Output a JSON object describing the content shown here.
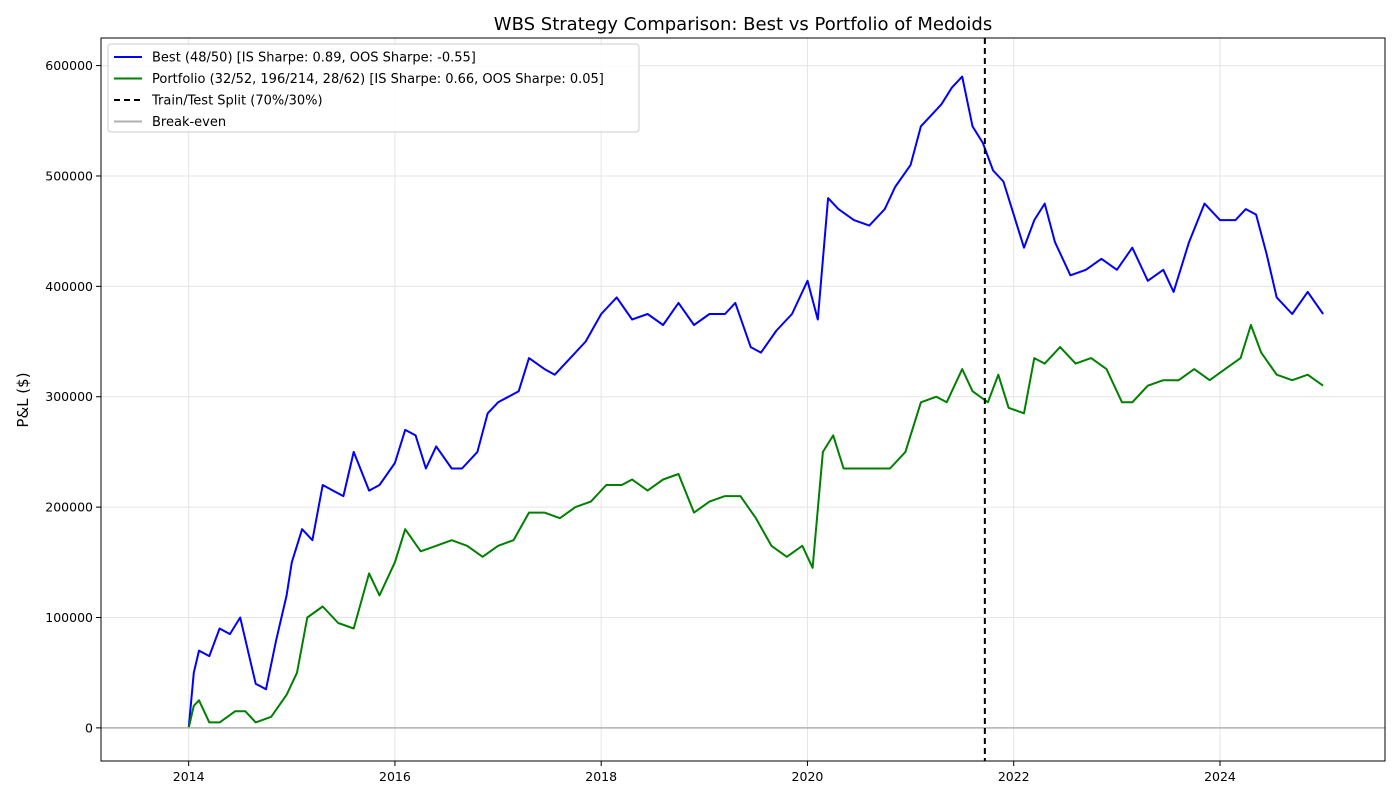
{
  "chart_data": {
    "type": "line",
    "title": "WBS Strategy Comparison: Best vs Portfolio of Medoids",
    "xlabel": "",
    "ylabel": "P&L ($)",
    "xlim": [
      2013.15,
      2025.6
    ],
    "ylim": [
      -30000,
      625000
    ],
    "x_ticks": [
      2014,
      2016,
      2018,
      2020,
      2022,
      2024
    ],
    "x_tick_labels": [
      "2014",
      "2016",
      "2018",
      "2020",
      "2022",
      "2024"
    ],
    "y_ticks": [
      0,
      100000,
      200000,
      300000,
      400000,
      500000,
      600000
    ],
    "y_tick_labels": [
      "0",
      "100000",
      "200000",
      "300000",
      "400000",
      "500000",
      "600000"
    ],
    "grid": true,
    "legend_position": "top-left",
    "split_x": 2021.72,
    "breakeven_y": 0,
    "legend": [
      {
        "label": "Best (48/50) [IS Sharpe: 0.89, OOS Sharpe: -0.55]",
        "color": "#0000ff",
        "style": "solid"
      },
      {
        "label": "Portfolio (32/52, 196/214, 28/62) [IS Sharpe: 0.66, OOS Sharpe: 0.05]",
        "color": "#008000",
        "style": "solid"
      },
      {
        "label": "Train/Test Split (70%/30%)",
        "color": "#000000",
        "style": "dashed"
      },
      {
        "label": "Break-even",
        "color": "#b0b0b0",
        "style": "solid"
      }
    ],
    "series": [
      {
        "name": "Best (48/50) [IS Sharpe: 0.89, OOS Sharpe: -0.55]",
        "color": "#0000ff",
        "x": [
          2014.0,
          2014.05,
          2014.1,
          2014.2,
          2014.3,
          2014.4,
          2014.5,
          2014.6,
          2014.65,
          2014.75,
          2014.85,
          2014.95,
          2015.0,
          2015.1,
          2015.2,
          2015.3,
          2015.4,
          2015.5,
          2015.6,
          2015.75,
          2015.85,
          2016.0,
          2016.1,
          2016.2,
          2016.3,
          2016.4,
          2016.55,
          2016.65,
          2016.8,
          2016.9,
          2017.0,
          2017.2,
          2017.3,
          2017.45,
          2017.55,
          2017.7,
          2017.85,
          2018.0,
          2018.15,
          2018.3,
          2018.45,
          2018.6,
          2018.75,
          2018.9,
          2019.05,
          2019.2,
          2019.3,
          2019.45,
          2019.55,
          2019.7,
          2019.85,
          2020.0,
          2020.1,
          2020.2,
          2020.3,
          2020.45,
          2020.6,
          2020.75,
          2020.85,
          2021.0,
          2021.1,
          2021.2,
          2021.3,
          2021.4,
          2021.5,
          2021.6,
          2021.7,
          2021.8,
          2021.9,
          2022.0,
          2022.1,
          2022.2,
          2022.3,
          2022.4,
          2022.55,
          2022.7,
          2022.85,
          2023.0,
          2023.15,
          2023.3,
          2023.45,
          2023.55,
          2023.7,
          2023.85,
          2024.0,
          2024.15,
          2024.25,
          2024.35,
          2024.45,
          2024.55,
          2024.7,
          2024.85,
          2025.0
        ],
        "y": [
          0,
          50000,
          70000,
          65000,
          90000,
          85000,
          100000,
          60000,
          40000,
          35000,
          80000,
          120000,
          150000,
          180000,
          170000,
          220000,
          215000,
          210000,
          250000,
          215000,
          220000,
          240000,
          270000,
          265000,
          235000,
          255000,
          235000,
          235000,
          250000,
          285000,
          295000,
          305000,
          335000,
          325000,
          320000,
          335000,
          350000,
          375000,
          390000,
          370000,
          375000,
          365000,
          385000,
          365000,
          375000,
          375000,
          385000,
          345000,
          340000,
          360000,
          375000,
          405000,
          370000,
          480000,
          470000,
          460000,
          455000,
          470000,
          490000,
          510000,
          545000,
          555000,
          565000,
          580000,
          590000,
          545000,
          530000,
          505000,
          495000,
          465000,
          435000,
          460000,
          475000,
          440000,
          410000,
          415000,
          425000,
          415000,
          435000,
          405000,
          415000,
          395000,
          440000,
          475000,
          460000,
          460000,
          470000,
          465000,
          430000,
          390000,
          375000,
          395000,
          375000
        ]
      },
      {
        "name": "Portfolio (32/52, 196/214, 28/62) [IS Sharpe: 0.66, OOS Sharpe: 0.05]",
        "color": "#008000",
        "x": [
          2014.0,
          2014.05,
          2014.1,
          2014.2,
          2014.3,
          2014.45,
          2014.55,
          2014.65,
          2014.8,
          2014.95,
          2015.05,
          2015.15,
          2015.3,
          2015.45,
          2015.6,
          2015.75,
          2015.85,
          2016.0,
          2016.1,
          2016.25,
          2016.4,
          2016.55,
          2016.7,
          2016.85,
          2017.0,
          2017.15,
          2017.3,
          2017.45,
          2017.6,
          2017.75,
          2017.9,
          2018.05,
          2018.2,
          2018.3,
          2018.45,
          2018.6,
          2018.75,
          2018.9,
          2019.05,
          2019.2,
          2019.35,
          2019.5,
          2019.65,
          2019.8,
          2019.95,
          2020.05,
          2020.15,
          2020.25,
          2020.35,
          2020.5,
          2020.65,
          2020.8,
          2020.95,
          2021.1,
          2021.25,
          2021.35,
          2021.5,
          2021.6,
          2021.75,
          2021.85,
          2021.95,
          2022.1,
          2022.2,
          2022.3,
          2022.45,
          2022.6,
          2022.75,
          2022.9,
          2023.05,
          2023.15,
          2023.3,
          2023.45,
          2023.6,
          2023.75,
          2023.9,
          2024.05,
          2024.2,
          2024.3,
          2024.4,
          2024.55,
          2024.7,
          2024.85,
          2025.0
        ],
        "y": [
          0,
          20000,
          25000,
          5000,
          5000,
          15000,
          15000,
          5000,
          10000,
          30000,
          50000,
          100000,
          110000,
          95000,
          90000,
          140000,
          120000,
          150000,
          180000,
          160000,
          165000,
          170000,
          165000,
          155000,
          165000,
          170000,
          195000,
          195000,
          190000,
          200000,
          205000,
          220000,
          220000,
          225000,
          215000,
          225000,
          230000,
          195000,
          205000,
          210000,
          210000,
          190000,
          165000,
          155000,
          165000,
          145000,
          250000,
          265000,
          235000,
          235000,
          235000,
          235000,
          250000,
          295000,
          300000,
          295000,
          325000,
          305000,
          295000,
          320000,
          290000,
          285000,
          335000,
          330000,
          345000,
          330000,
          335000,
          325000,
          295000,
          295000,
          310000,
          315000,
          315000,
          325000,
          315000,
          325000,
          335000,
          365000,
          340000,
          320000,
          315000,
          320000,
          310000
        ]
      }
    ]
  }
}
